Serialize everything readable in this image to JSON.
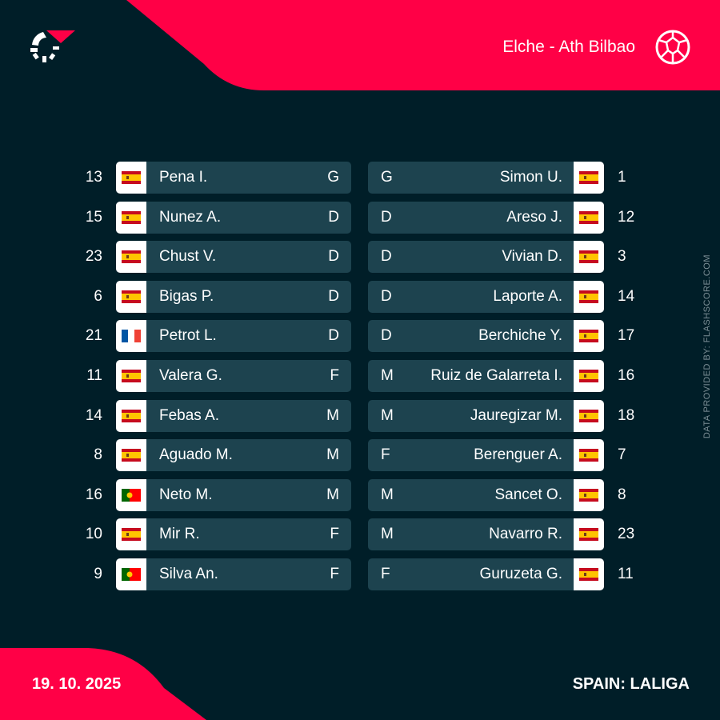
{
  "header": {
    "match": "Elche - Ath Bilbao",
    "logo_icon": "flashscore-logo-icon",
    "sport_icon": "football-icon"
  },
  "footer": {
    "date": "19. 10. 2025",
    "competition": "SPAIN: LALIGA"
  },
  "credit": "DATA PROVIDED BY: FLASHSCORE.COM",
  "colors": {
    "background": "#001e28",
    "accent": "#ff0046",
    "row": "#1d434f"
  },
  "home": [
    {
      "number": "13",
      "flag": "es",
      "name": "Pena I.",
      "pos": "G"
    },
    {
      "number": "15",
      "flag": "es",
      "name": "Nunez A.",
      "pos": "D"
    },
    {
      "number": "23",
      "flag": "es",
      "name": "Chust V.",
      "pos": "D"
    },
    {
      "number": "6",
      "flag": "es",
      "name": "Bigas P.",
      "pos": "D"
    },
    {
      "number": "21",
      "flag": "fr",
      "name": "Petrot L.",
      "pos": "D"
    },
    {
      "number": "11",
      "flag": "es",
      "name": "Valera G.",
      "pos": "F"
    },
    {
      "number": "14",
      "flag": "es",
      "name": "Febas A.",
      "pos": "M"
    },
    {
      "number": "8",
      "flag": "es",
      "name": "Aguado M.",
      "pos": "M"
    },
    {
      "number": "16",
      "flag": "pt",
      "name": "Neto M.",
      "pos": "M"
    },
    {
      "number": "10",
      "flag": "es",
      "name": "Mir R.",
      "pos": "F"
    },
    {
      "number": "9",
      "flag": "pt",
      "name": "Silva An.",
      "pos": "F"
    }
  ],
  "away": [
    {
      "number": "1",
      "flag": "es",
      "name": "Simon U.",
      "pos": "G"
    },
    {
      "number": "12",
      "flag": "es",
      "name": "Areso J.",
      "pos": "D"
    },
    {
      "number": "3",
      "flag": "es",
      "name": "Vivian D.",
      "pos": "D"
    },
    {
      "number": "14",
      "flag": "es",
      "name": "Laporte A.",
      "pos": "D"
    },
    {
      "number": "17",
      "flag": "es",
      "name": "Berchiche Y.",
      "pos": "D"
    },
    {
      "number": "16",
      "flag": "es",
      "name": "Ruiz de Galarreta I.",
      "pos": "M"
    },
    {
      "number": "18",
      "flag": "es",
      "name": "Jauregizar M.",
      "pos": "M"
    },
    {
      "number": "7",
      "flag": "es",
      "name": "Berenguer A.",
      "pos": "F"
    },
    {
      "number": "8",
      "flag": "es",
      "name": "Sancet O.",
      "pos": "M"
    },
    {
      "number": "23",
      "flag": "es",
      "name": "Navarro R.",
      "pos": "M"
    },
    {
      "number": "11",
      "flag": "es",
      "name": "Guruzeta G.",
      "pos": "F"
    }
  ]
}
